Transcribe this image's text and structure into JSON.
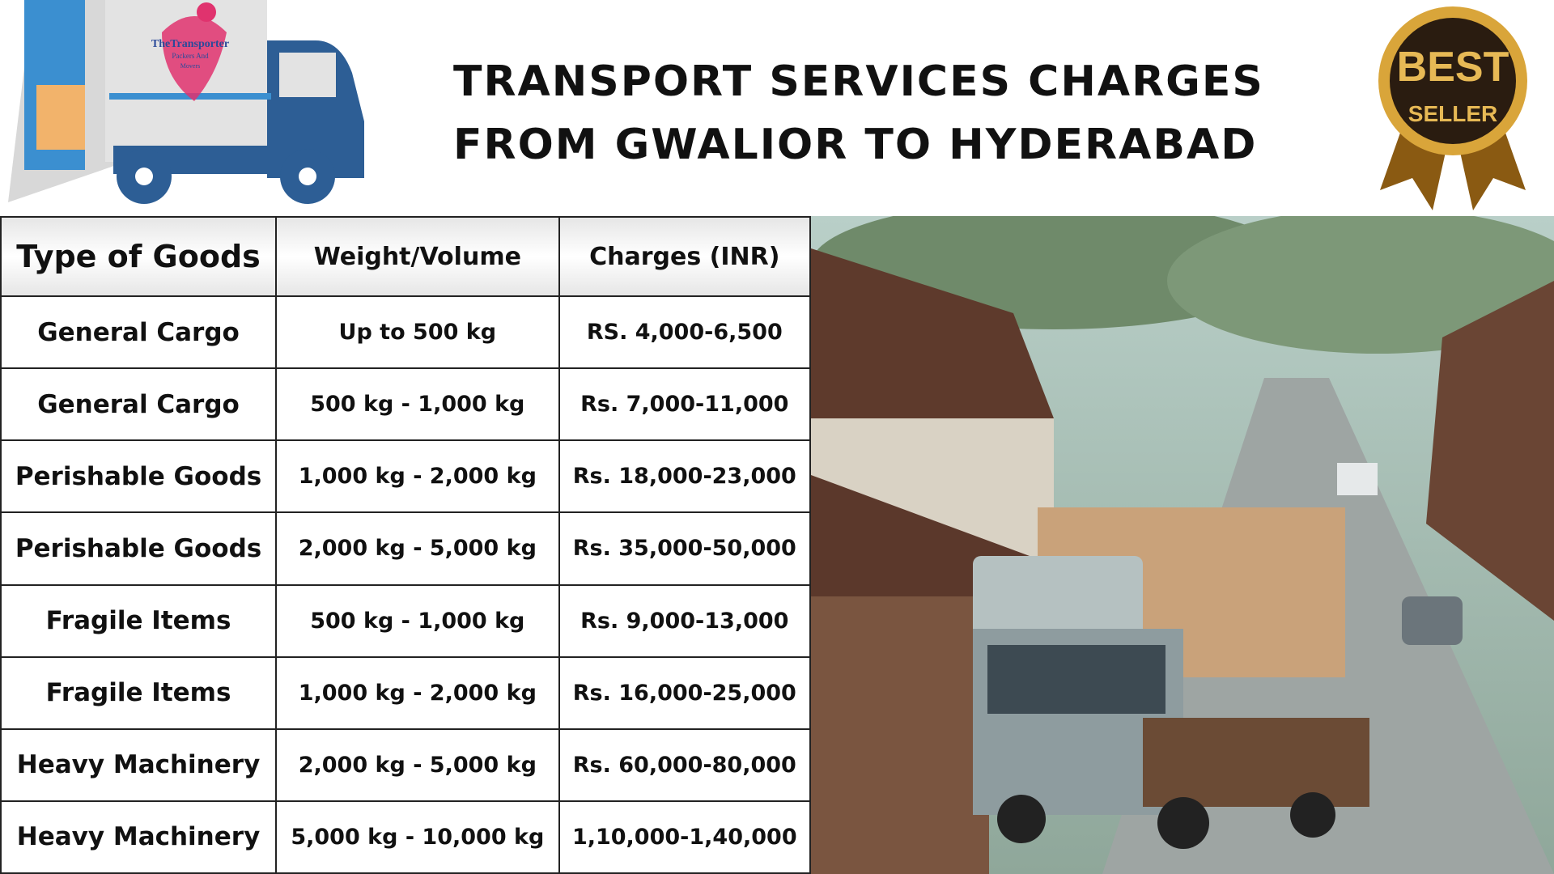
{
  "header": {
    "title_lines": [
      "TRANSPORT SERVICES CHARGES",
      "FROM GWALIOR TO HYDERABAD"
    ],
    "logo": {
      "lines": [
        "TheTransporter",
        "Packers And",
        "Movers"
      ]
    },
    "badge": {
      "lines": [
        "BEST",
        "SELLER"
      ]
    }
  },
  "table": {
    "columns": [
      "Type of Goods",
      "Weight/Volume",
      "Charges (INR)"
    ],
    "rows": [
      [
        "General Cargo",
        "Up to 500 kg",
        "RS. 4,000-6,500"
      ],
      [
        "General Cargo",
        "500 kg - 1,000 kg",
        "Rs. 7,000-11,000"
      ],
      [
        "Perishable Goods",
        "1,000 kg - 2,000 kg",
        "Rs. 18,000-23,000"
      ],
      [
        "Perishable Goods",
        "2,000 kg - 5,000 kg",
        "Rs. 35,000-50,000"
      ],
      [
        "Fragile Items",
        "500 kg - 1,000 kg",
        "Rs. 9,000-13,000"
      ],
      [
        "Fragile Items",
        "1,000 kg - 2,000 kg",
        "Rs. 16,000-25,000"
      ],
      [
        "Heavy Machinery",
        "2,000 kg - 5,000 kg",
        "Rs. 60,000-80,000"
      ],
      [
        "Heavy Machinery",
        "5,000 kg - 10,000 kg",
        "1,10,000-1,40,000"
      ]
    ]
  }
}
